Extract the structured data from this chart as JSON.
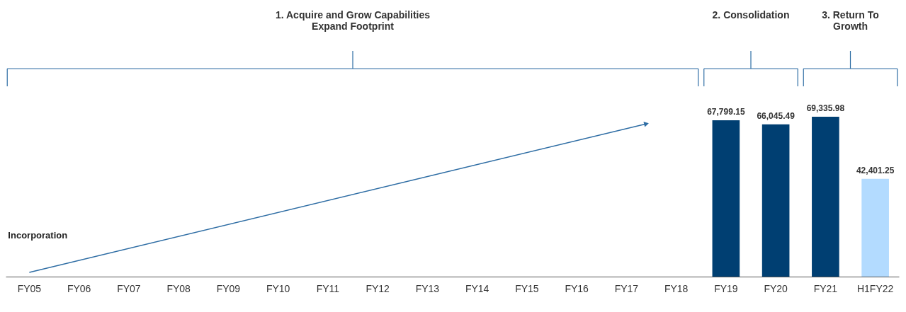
{
  "chart_data": {
    "type": "bar",
    "categories": [
      "FY05",
      "FY06",
      "FY07",
      "FY08",
      "FY09",
      "FY10",
      "FY11",
      "FY12",
      "FY13",
      "FY14",
      "FY15",
      "FY16",
      "FY17",
      "FY18",
      "FY19",
      "FY20",
      "FY21",
      "H1FY22"
    ],
    "values": [
      null,
      null,
      null,
      null,
      null,
      null,
      null,
      null,
      null,
      null,
      null,
      null,
      null,
      null,
      67799.15,
      66045.49,
      69335.98,
      42401.25
    ],
    "colors": [
      "#003f72",
      "#003f72",
      "#003f72",
      "#003f72",
      "#003f72",
      "#003f72",
      "#003f72",
      "#003f72",
      "#003f72",
      "#003f72",
      "#003f72",
      "#003f72",
      "#003f72",
      "#003f72",
      "#003f72",
      "#003f72",
      "#003f72",
      "#b3dbff"
    ],
    "value_labels": [
      null,
      null,
      null,
      null,
      null,
      null,
      null,
      null,
      null,
      null,
      null,
      null,
      null,
      null,
      "67,799.15",
      "66,045.49",
      "69,335.98",
      "42,401.25"
    ],
    "grid": false,
    "legend": false,
    "annotations": [
      "1. Acquire and Grow Capabilities\nExpand Footprint",
      "2. Consolidation",
      "3. Return To\nGrowth",
      "Incorporation"
    ]
  }
}
